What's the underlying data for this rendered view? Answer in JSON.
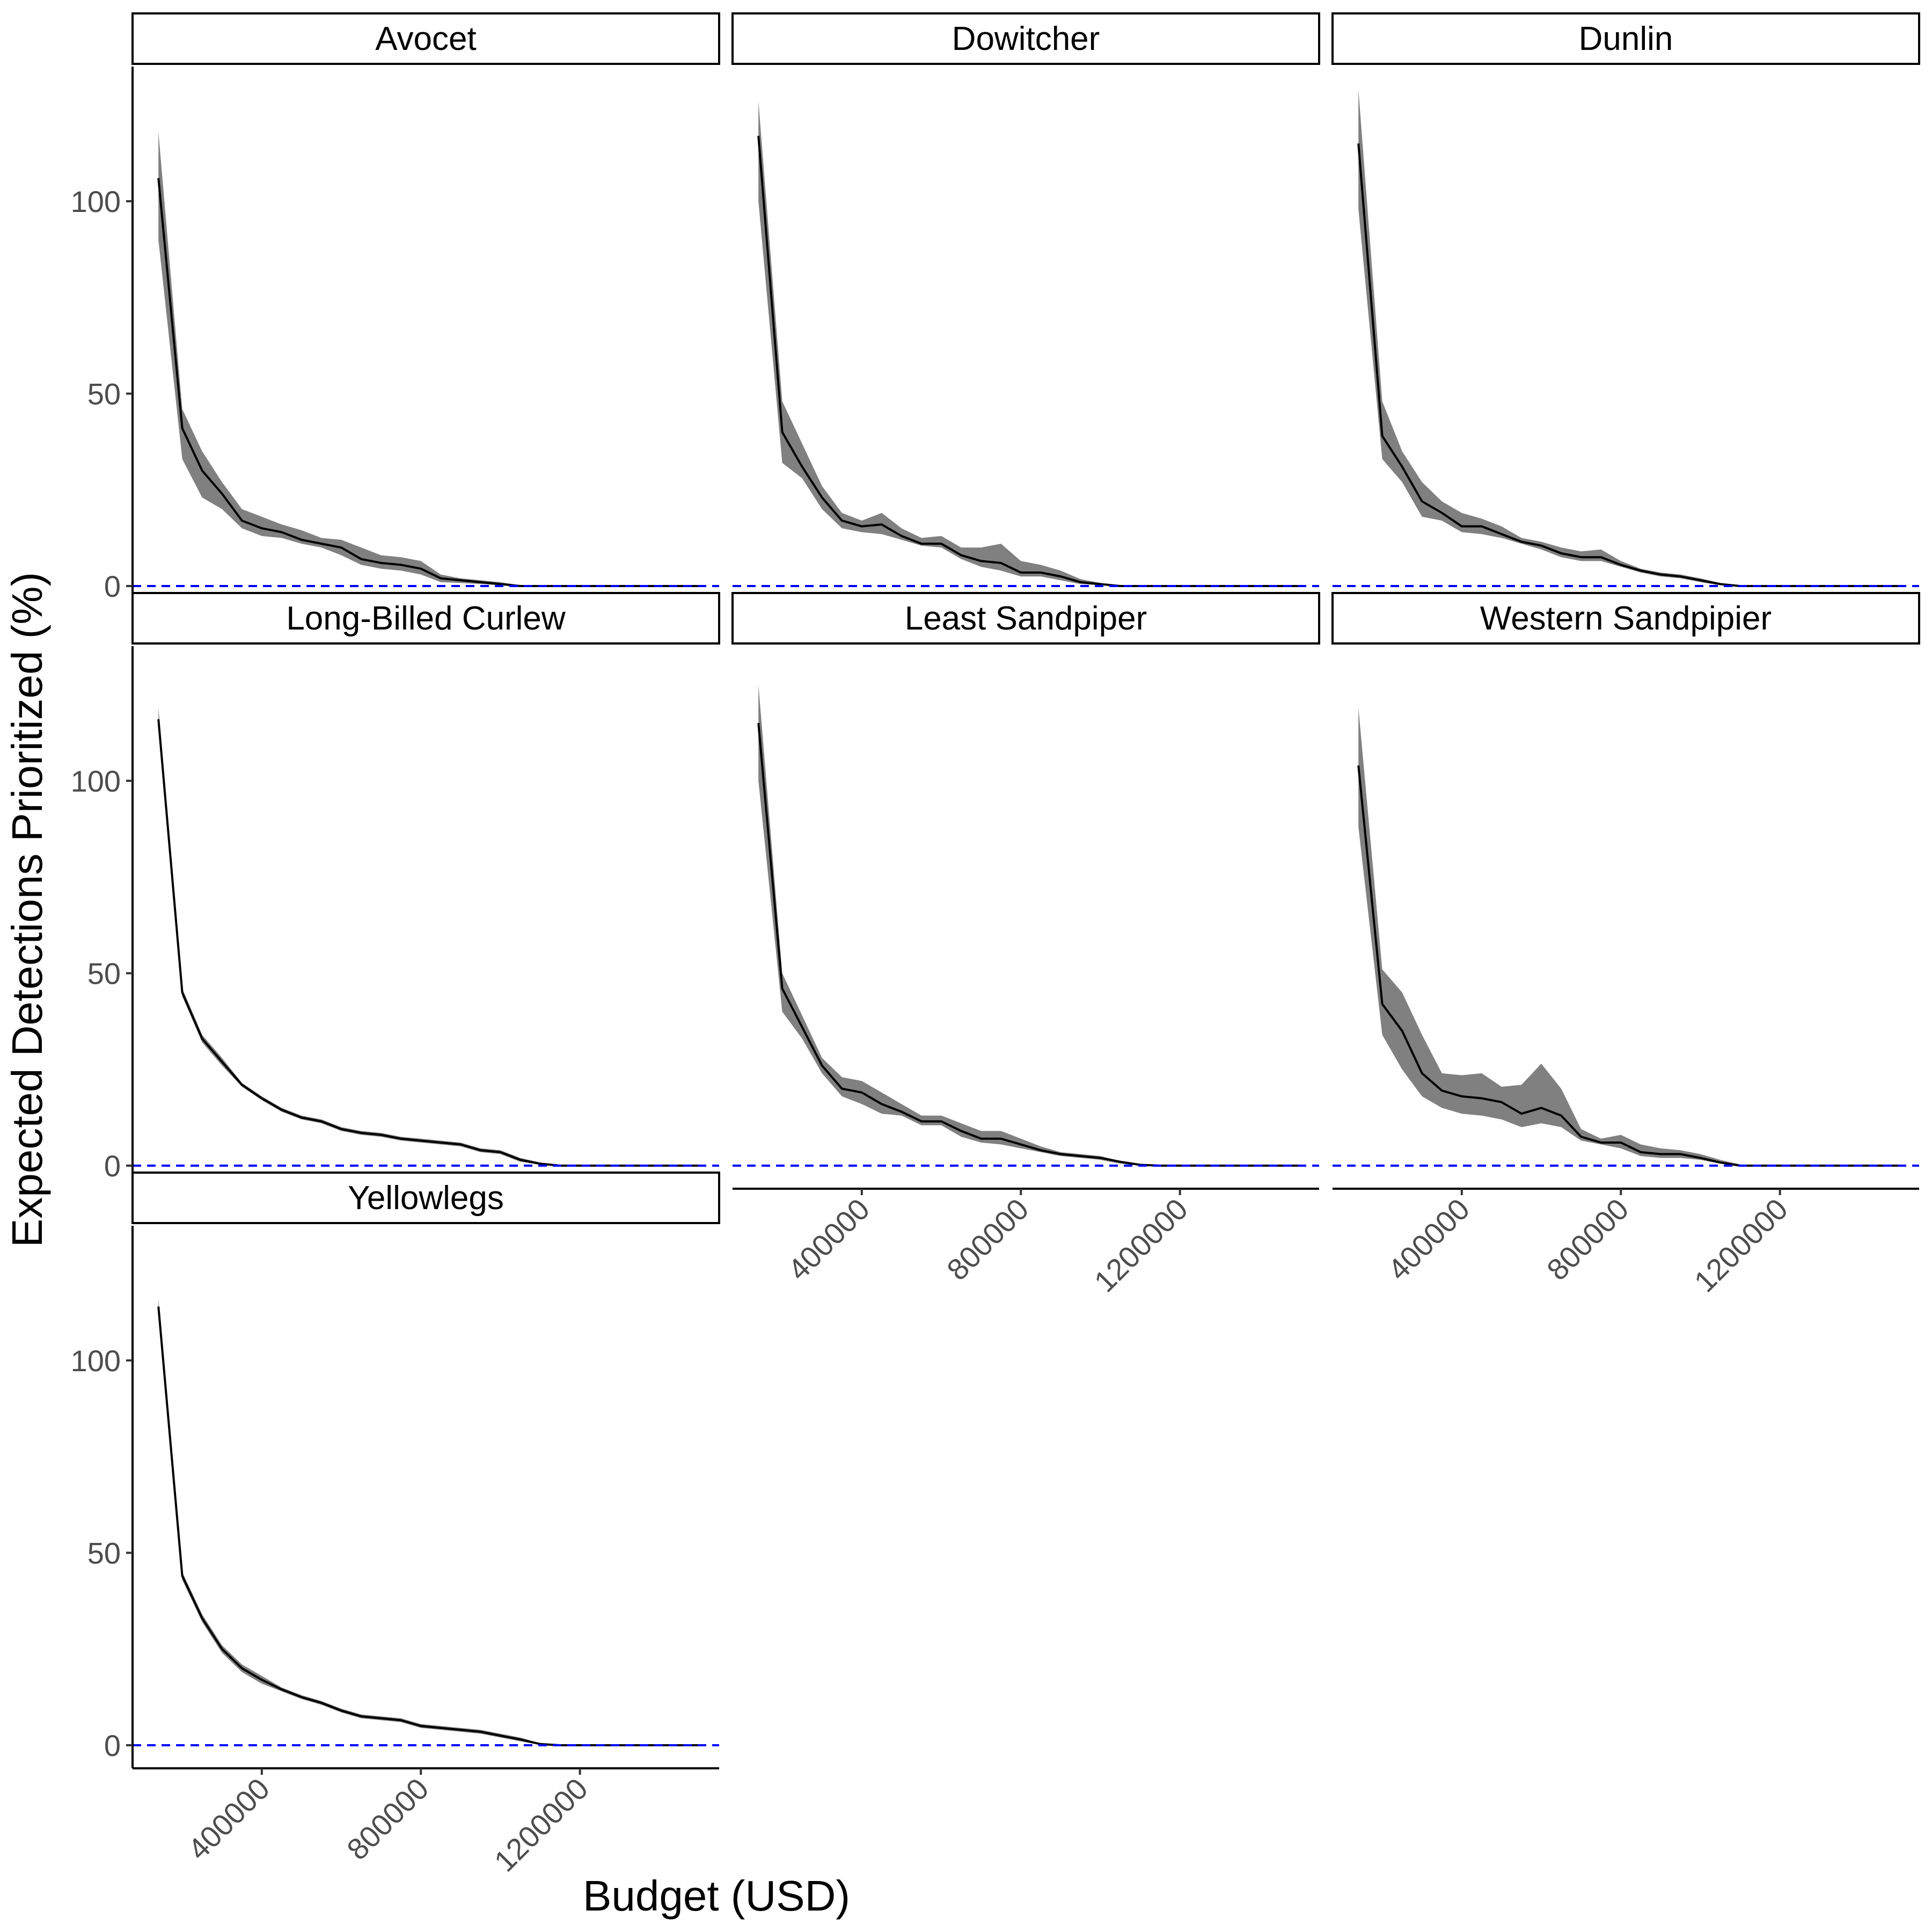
{
  "chart_data": {
    "type": "line",
    "facet_layout": "3 columns, 3 rows, free facets left empty",
    "xlabel": "Budget (USD)",
    "ylabel": "Expected Detections Prioritized (%)",
    "x_ticks": [
      400000,
      800000,
      1200000
    ],
    "x_tick_labels": [
      "400000",
      "800000",
      "1200000"
    ],
    "y_ticks": [
      0,
      50,
      100
    ],
    "y_tick_labels": [
      "0",
      "50",
      "100"
    ],
    "xlim": [
      75000,
      1550000
    ],
    "ylim": [
      -6,
      135
    ],
    "reference_line": {
      "y": 0,
      "style": "dashed",
      "color": "#0000ff"
    },
    "line_color": "#000000",
    "ribbon_color": "#808080",
    "x": [
      140000,
      200000,
      250000,
      300000,
      350000,
      400000,
      450000,
      500000,
      550000,
      600000,
      650000,
      700000,
      750000,
      800000,
      850000,
      900000,
      950000,
      1000000,
      1050000,
      1100000,
      1150000,
      1200000,
      1300000,
      1400000,
      1500000
    ],
    "panels": [
      {
        "title": "Avocet",
        "mean": [
          106,
          41,
          30,
          24,
          17,
          15,
          14,
          12,
          11,
          10,
          7,
          6,
          5.5,
          4.5,
          2,
          1.5,
          1,
          0.5,
          0,
          0,
          0,
          0,
          0,
          0,
          0
        ],
        "lower": [
          90,
          33,
          23,
          20,
          15,
          13,
          12.5,
          11,
          10,
          8,
          5.5,
          4.5,
          4,
          3,
          1,
          0.8,
          0.5,
          0.2,
          0,
          0,
          0,
          0,
          0,
          0,
          0
        ],
        "upper": [
          118,
          46,
          35,
          27,
          20,
          18,
          16,
          14.5,
          12.5,
          12,
          10,
          8,
          7.5,
          6.5,
          3,
          2,
          1.5,
          1,
          0.2,
          0,
          0,
          0,
          0,
          0,
          0
        ]
      },
      {
        "title": "Dowitcher",
        "mean": [
          117,
          40,
          31,
          23,
          17,
          15.5,
          16,
          13,
          11,
          11,
          8,
          6.5,
          6,
          3.5,
          3.5,
          2.5,
          1,
          0.5,
          0,
          0,
          0,
          0,
          0,
          0,
          0
        ],
        "lower": [
          100,
          32,
          28,
          20,
          15,
          14,
          13.5,
          12,
          10.5,
          10,
          7,
          5,
          4,
          2.5,
          2.5,
          1.5,
          0.5,
          0.2,
          0,
          0,
          0,
          0,
          0,
          0,
          0
        ],
        "upper": [
          126,
          48,
          37,
          26,
          19,
          17,
          19,
          15,
          12.5,
          13,
          10,
          10,
          11,
          6.5,
          5.5,
          4,
          1.8,
          0.8,
          0.2,
          0,
          0,
          0,
          0,
          0,
          0
        ]
      },
      {
        "title": "Dunlin",
        "mean": [
          115,
          39,
          31,
          22,
          19,
          15.5,
          15.5,
          13.5,
          11.5,
          10.5,
          8.5,
          7.5,
          7.5,
          5.5,
          4,
          3,
          2.5,
          1.5,
          0.5,
          0,
          0,
          0,
          0,
          0,
          0
        ],
        "lower": [
          98,
          33,
          27,
          18,
          17,
          14,
          13.5,
          12.5,
          11,
          9.5,
          7.5,
          6.5,
          6.5,
          5,
          3.5,
          2.5,
          2,
          1,
          0.2,
          0,
          0,
          0,
          0,
          0,
          0
        ],
        "upper": [
          129,
          48,
          35,
          27,
          22,
          19,
          17.5,
          15.5,
          12.5,
          11.5,
          10,
          9,
          9.5,
          6.5,
          4.5,
          3.5,
          3,
          2,
          0.8,
          0.1,
          0,
          0,
          0,
          0,
          0
        ]
      },
      {
        "title": "Long-Billed Curlew",
        "mean": [
          116,
          45,
          33,
          27,
          21,
          17.5,
          14.5,
          12.5,
          11.5,
          9.5,
          8.5,
          8,
          7,
          6.5,
          6,
          5.5,
          4,
          3.5,
          1.5,
          0.5,
          0,
          0,
          0,
          0,
          0
        ],
        "lower": [
          113,
          44,
          32,
          26,
          20.5,
          17,
          14,
          12,
          11,
          9,
          8,
          7.5,
          6.5,
          6,
          5.5,
          5,
          3.5,
          3,
          1,
          0.2,
          0,
          0,
          0,
          0,
          0
        ],
        "upper": [
          119,
          46,
          34,
          28,
          21.5,
          18,
          15,
          13,
          12,
          10,
          9,
          8.5,
          7.5,
          7,
          6.5,
          6,
          4.5,
          4,
          2,
          0.8,
          0,
          0,
          0,
          0,
          0
        ]
      },
      {
        "title": "Least Sandpiper",
        "mean": [
          115,
          46,
          36,
          26,
          20,
          19,
          16,
          14,
          11.5,
          11.5,
          9,
          7,
          7,
          5.5,
          4,
          3,
          2.5,
          2,
          1,
          0.2,
          0,
          0,
          0,
          0,
          0
        ],
        "lower": [
          100,
          40,
          33,
          24,
          18,
          16,
          13.5,
          13,
          10.5,
          10.5,
          7.5,
          6,
          5.5,
          4.5,
          3.5,
          2.5,
          2,
          1.5,
          0.5,
          0,
          0,
          0,
          0,
          0,
          0
        ],
        "upper": [
          125,
          50,
          39,
          28,
          23,
          22,
          19,
          16,
          13,
          13,
          11,
          9,
          9,
          7,
          5,
          3.5,
          3,
          2.5,
          1.2,
          0.3,
          0,
          0,
          0,
          0,
          0
        ]
      },
      {
        "title": "Western Sandpipier",
        "mean": [
          104,
          42,
          35,
          24,
          19.5,
          18,
          17.5,
          16.5,
          13.5,
          15,
          13,
          7.5,
          6,
          6,
          3.5,
          3,
          3,
          2,
          0.8,
          0,
          0,
          0,
          0,
          0,
          0
        ],
        "lower": [
          88,
          34,
          25,
          18,
          15,
          13.5,
          13,
          12,
          10,
          11,
          10,
          6.5,
          5.5,
          4.5,
          2.5,
          2,
          2,
          1.5,
          0.5,
          0,
          0,
          0,
          0,
          0,
          0
        ],
        "upper": [
          119,
          51,
          45,
          34,
          24,
          23.5,
          24,
          20.5,
          21,
          26.5,
          20,
          9.5,
          7,
          8,
          5.5,
          4.5,
          4,
          3,
          1.5,
          0.3,
          0,
          0,
          0,
          0,
          0
        ]
      },
      {
        "title": "Yellowlegs",
        "mean": [
          114,
          44,
          33,
          25,
          20,
          17,
          14.5,
          12.5,
          11,
          9,
          7.5,
          7,
          6.5,
          5,
          4.5,
          4,
          3.5,
          2.5,
          1.5,
          0.3,
          0,
          0,
          0,
          0,
          0
        ],
        "lower": [
          112,
          43,
          32,
          24,
          19,
          16,
          14,
          12,
          10.5,
          8.5,
          7,
          6.5,
          6,
          4.5,
          4,
          3.5,
          3,
          2,
          1,
          0.1,
          0,
          0,
          0,
          0,
          0
        ],
        "upper": [
          116,
          45,
          34,
          26,
          21,
          18,
          15,
          13,
          11.5,
          9.5,
          8,
          7.5,
          7,
          5.5,
          5,
          4.5,
          4,
          3,
          2,
          0.5,
          0,
          0,
          0,
          0,
          0
        ]
      }
    ]
  }
}
